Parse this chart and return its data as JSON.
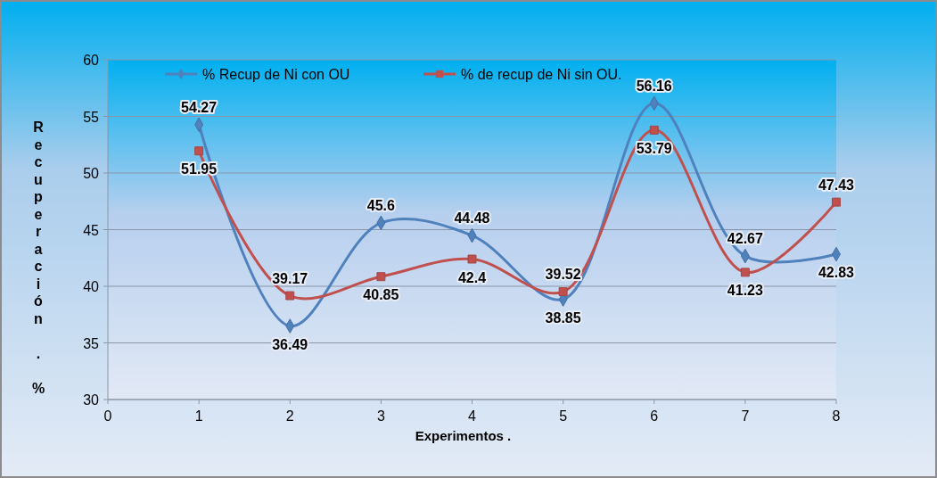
{
  "chart_data": {
    "type": "line",
    "xlabel": "Experimentos .",
    "ylabel": "Recuperación . %",
    "x": [
      1,
      2,
      3,
      4,
      5,
      6,
      7,
      8
    ],
    "xlim": [
      0,
      8
    ],
    "xticks": [
      0,
      1,
      2,
      3,
      4,
      5,
      6,
      7,
      8
    ],
    "ylim": [
      30,
      60
    ],
    "yticks": [
      30,
      35,
      40,
      45,
      50,
      55,
      60
    ],
    "grid": "y",
    "legend": "top",
    "data_labels": true,
    "series": [
      {
        "name": "% Recup de Ni con OU",
        "color": "#4f81bd",
        "marker": "diamond",
        "values": [
          54.27,
          36.49,
          45.6,
          44.48,
          38.85,
          56.16,
          42.67,
          42.83
        ]
      },
      {
        "name": "% de recup de Ni sin OU.",
        "color": "#c0504d",
        "marker": "square",
        "values": [
          51.95,
          39.17,
          40.85,
          42.4,
          39.52,
          53.79,
          41.23,
          47.43
        ]
      }
    ]
  }
}
